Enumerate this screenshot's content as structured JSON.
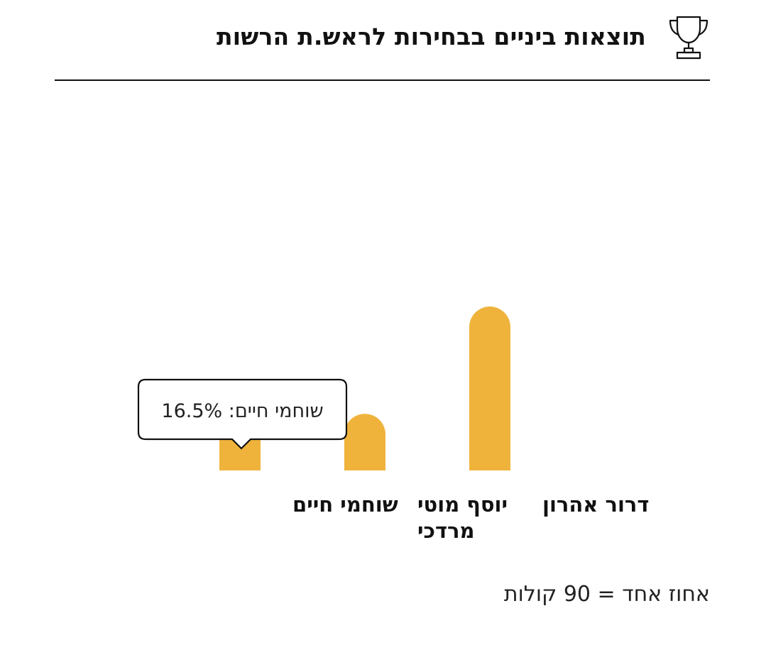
{
  "header": {
    "title": "תוצאות ביניים בבחירות לראש.ת הרשות",
    "icon": "trophy-icon"
  },
  "footnote": "אחוז אחד = 90 קולות",
  "tooltip": {
    "text": "שוחמי חיים: 16.5%",
    "category_index": 2
  },
  "colors": {
    "bar": "#EFB33C",
    "text": "#111111"
  },
  "chart_data": {
    "type": "bar",
    "categories": [
      "דרור אהרון",
      "יוסף מוטי מרדכי",
      "שוחמי חיים"
    ],
    "category_label_lines": [
      [
        "דרור אהרון"
      ],
      [
        "יוסף מוטי",
        "מרדכי"
      ],
      [
        "שוחמי חיים"
      ]
    ],
    "values": [
      55,
      19,
      16.5
    ],
    "ylim": [
      0,
      100
    ],
    "grid": false
  }
}
